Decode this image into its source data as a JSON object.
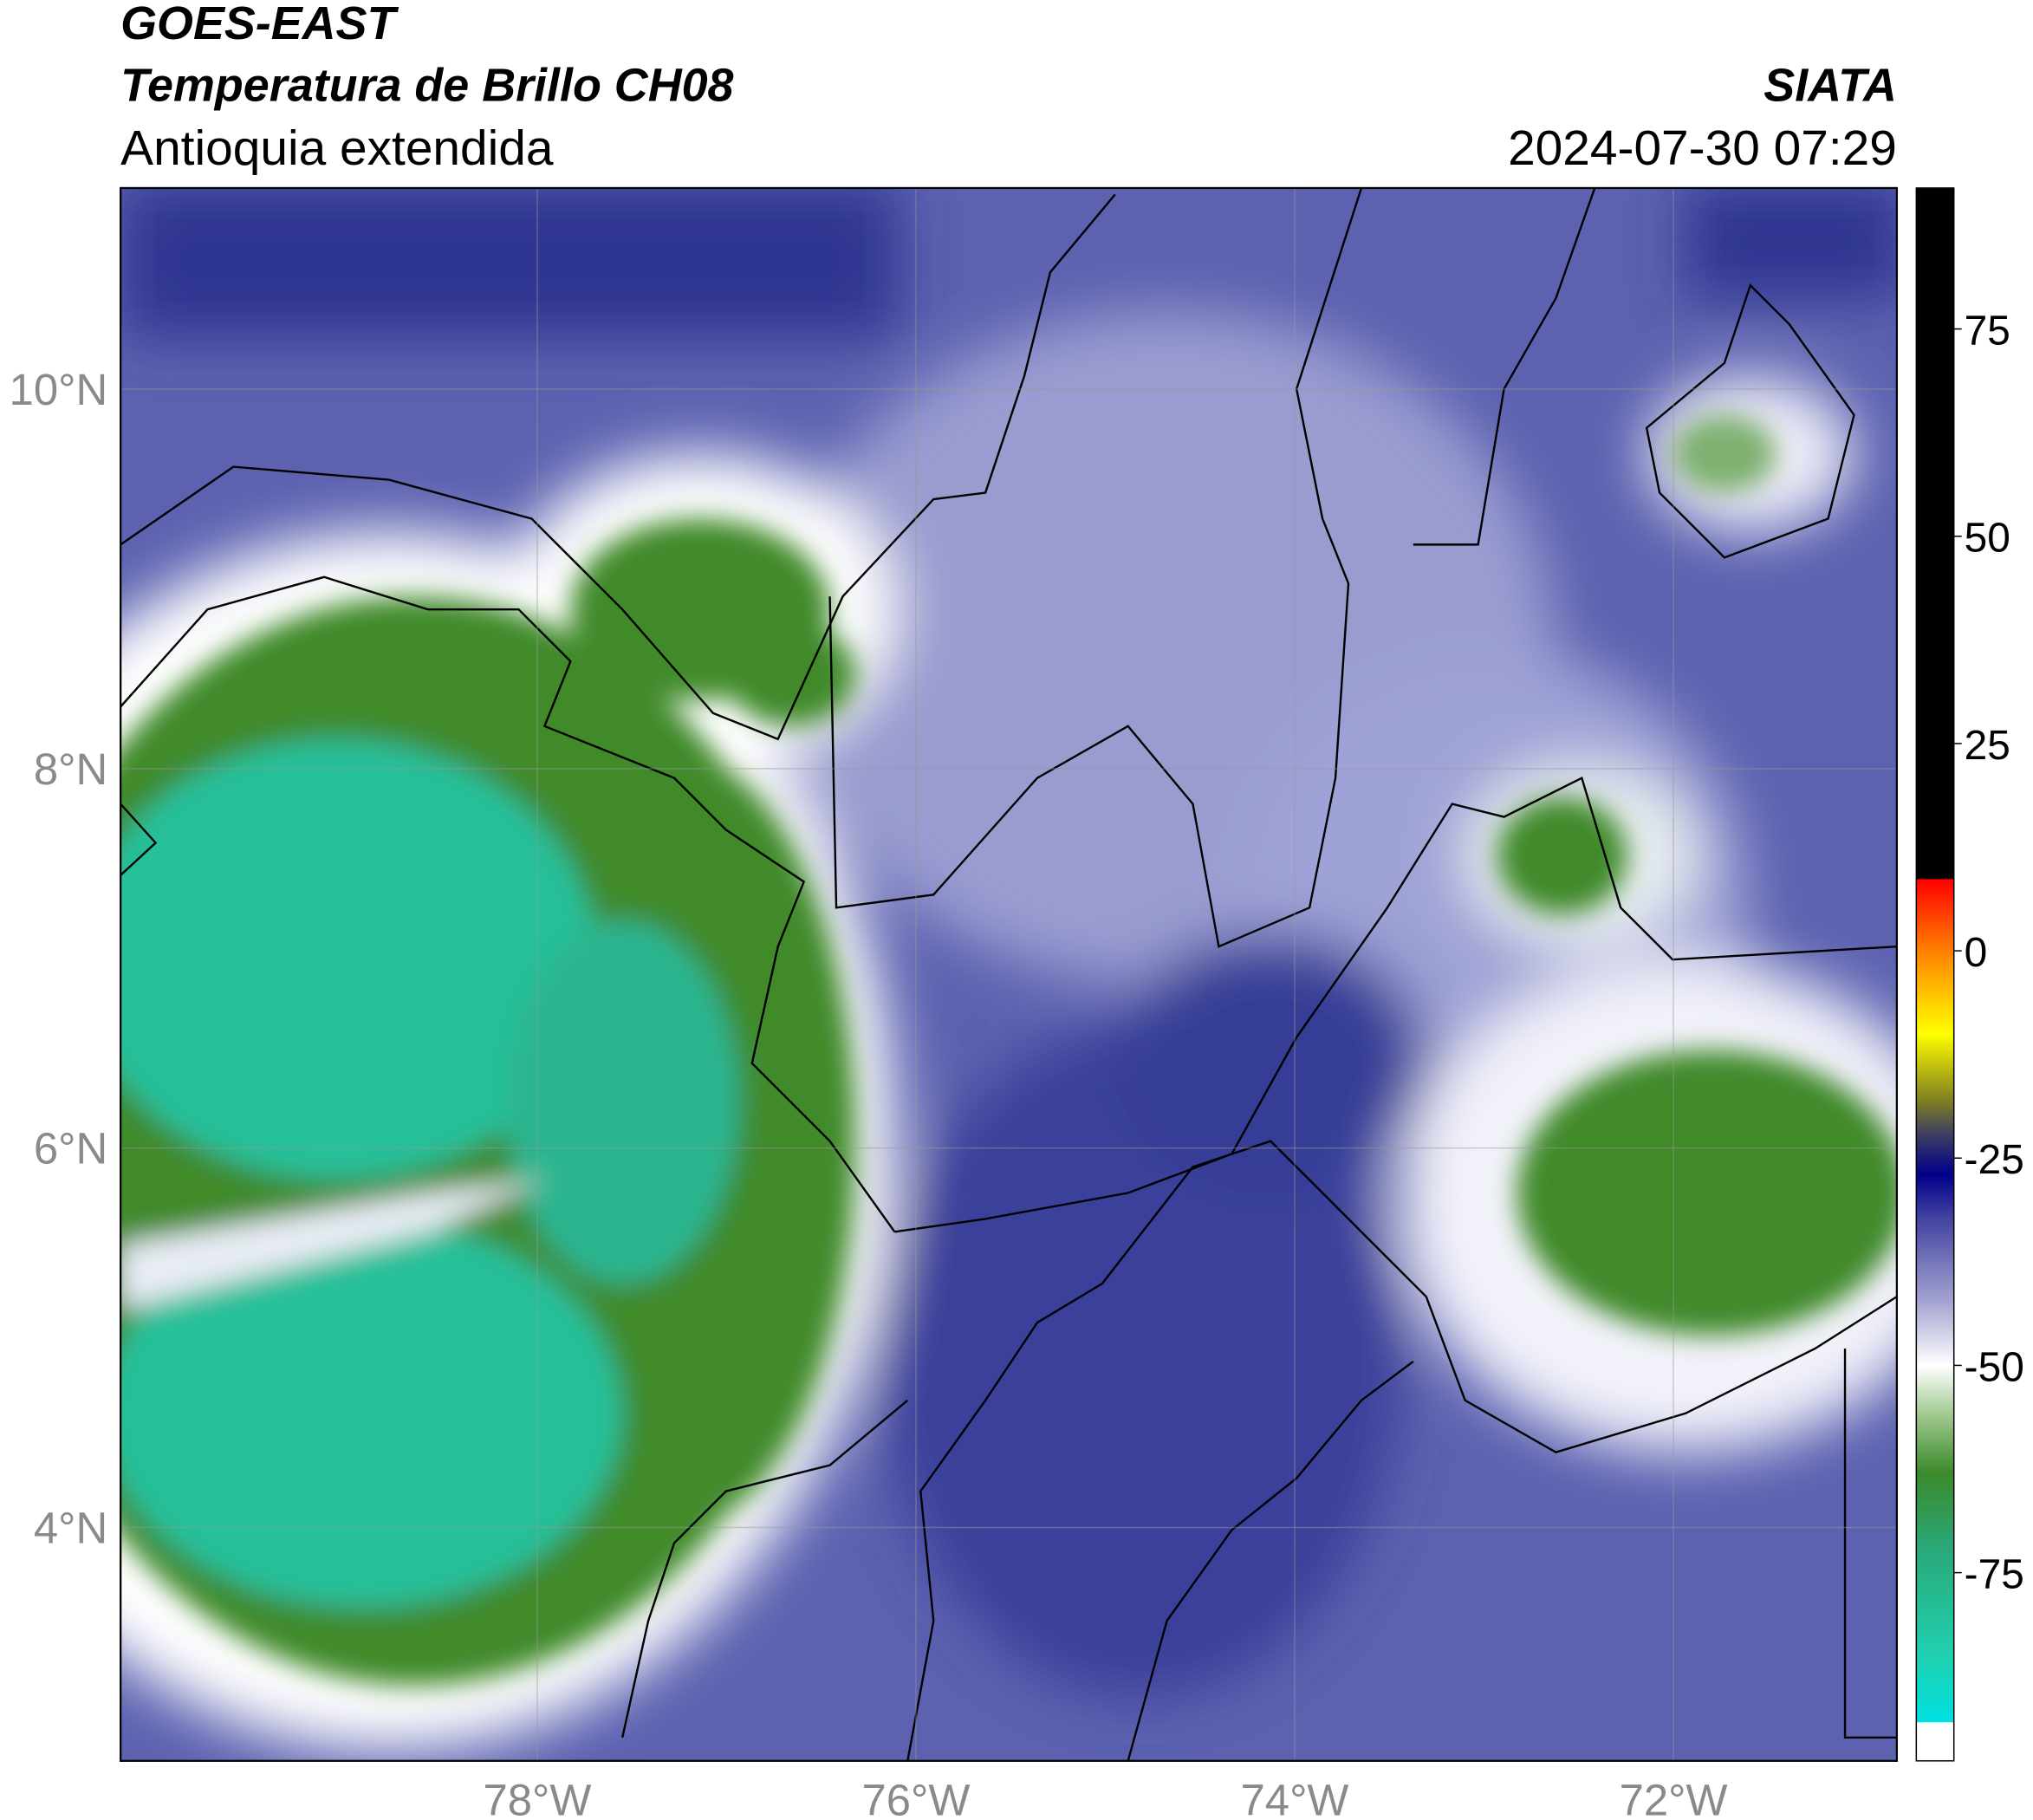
{
  "chart_data": {
    "type": "map",
    "title": "GOES-EAST",
    "subtitle": "Temperatura de Brillo CH08",
    "region": "Antioquia extendida",
    "source": "SIATA",
    "datetime": "2024-07-30 07:29",
    "xlim": [
      -80.2,
      -70.82
    ],
    "ylim": [
      2.77,
      11.06
    ],
    "xticks": [
      {
        "value": -78,
        "label": "78°W"
      },
      {
        "value": -76,
        "label": "76°W"
      },
      {
        "value": -74,
        "label": "74°W"
      },
      {
        "value": -72,
        "label": "72°W"
      }
    ],
    "yticks": [
      {
        "value": 4,
        "label": "4°N"
      },
      {
        "value": 6,
        "label": "6°N"
      },
      {
        "value": 8,
        "label": "8°N"
      },
      {
        "value": 10,
        "label": "10°N"
      }
    ],
    "grid": true,
    "colorbar": {
      "lim": [
        -97.7,
        92
      ],
      "ticks": [
        -75,
        -50,
        -25,
        0,
        25,
        50,
        75
      ],
      "stops": [
        {
          "value": 92,
          "color": "#000000"
        },
        {
          "value": 8.7,
          "color": "#000000"
        },
        {
          "value": 8.6,
          "color": "#ff0000"
        },
        {
          "value": 0,
          "color": "#ff8000"
        },
        {
          "value": -10,
          "color": "#ffff00"
        },
        {
          "value": -18,
          "color": "#808020"
        },
        {
          "value": -22,
          "color": "#404060"
        },
        {
          "value": -27,
          "color": "#00008b"
        },
        {
          "value": -32,
          "color": "#4040a0"
        },
        {
          "value": -42,
          "color": "#a0a0d0"
        },
        {
          "value": -50,
          "color": "#ffffff"
        },
        {
          "value": -56,
          "color": "#a0c890"
        },
        {
          "value": -63,
          "color": "#3a8a2a"
        },
        {
          "value": -72,
          "color": "#2aa878"
        },
        {
          "value": -85,
          "color": "#20d0b0"
        },
        {
          "value": -93,
          "color": "#00e0e0"
        },
        {
          "value": -93.1,
          "color": "#ffffff"
        },
        {
          "value": -97.7,
          "color": "#ffffff"
        }
      ]
    }
  }
}
